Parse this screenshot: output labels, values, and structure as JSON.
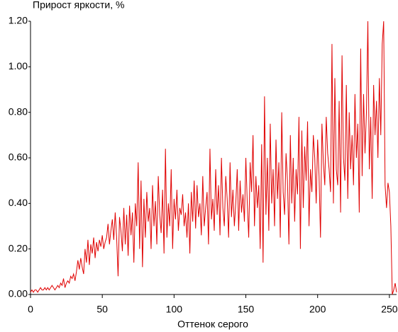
{
  "chart_data": {
    "type": "line",
    "title": "Прирост яркости, %",
    "x_label": "Оттенок серого",
    "color": "#e00000",
    "grid": false,
    "xlim": [
      0,
      255
    ],
    "xticks": [
      0,
      50,
      100,
      150,
      200,
      250
    ],
    "ylim": [
      0,
      1.2
    ],
    "yticks": [
      {
        "value": 0,
        "label": "0.00"
      },
      {
        "value": 0.2,
        "label": "0.20"
      },
      {
        "value": 0.4,
        "label": "0.40"
      },
      {
        "value": 0.6,
        "label": "0.60"
      },
      {
        "value": 0.8,
        "label": "0.80"
      },
      {
        "value": 1.0,
        "label": "1.00"
      },
      {
        "value": 1.2,
        "label": "1.20"
      }
    ],
    "x": [
      0,
      1,
      2,
      3,
      4,
      5,
      6,
      7,
      8,
      9,
      10,
      11,
      12,
      13,
      14,
      15,
      16,
      17,
      18,
      19,
      20,
      21,
      22,
      23,
      24,
      25,
      26,
      27,
      28,
      29,
      30,
      31,
      32,
      33,
      34,
      35,
      36,
      37,
      38,
      39,
      40,
      41,
      42,
      43,
      44,
      45,
      46,
      47,
      48,
      49,
      50,
      51,
      52,
      53,
      54,
      55,
      56,
      57,
      58,
      59,
      60,
      61,
      62,
      63,
      64,
      65,
      66,
      67,
      68,
      69,
      70,
      71,
      72,
      73,
      74,
      75,
      76,
      77,
      78,
      79,
      80,
      81,
      82,
      83,
      84,
      85,
      86,
      87,
      88,
      89,
      90,
      91,
      92,
      93,
      94,
      95,
      96,
      97,
      98,
      99,
      100,
      101,
      102,
      103,
      104,
      105,
      106,
      107,
      108,
      109,
      110,
      111,
      112,
      113,
      114,
      115,
      116,
      117,
      118,
      119,
      120,
      121,
      122,
      123,
      124,
      125,
      126,
      127,
      128,
      129,
      130,
      131,
      132,
      133,
      134,
      135,
      136,
      137,
      138,
      139,
      140,
      141,
      142,
      143,
      144,
      145,
      146,
      147,
      148,
      149,
      150,
      151,
      152,
      153,
      154,
      155,
      156,
      157,
      158,
      159,
      160,
      161,
      162,
      163,
      164,
      165,
      166,
      167,
      168,
      169,
      170,
      171,
      172,
      173,
      174,
      175,
      176,
      177,
      178,
      179,
      180,
      181,
      182,
      183,
      184,
      185,
      186,
      187,
      188,
      189,
      190,
      191,
      192,
      193,
      194,
      195,
      196,
      197,
      198,
      199,
      200,
      201,
      202,
      203,
      204,
      205,
      206,
      207,
      208,
      209,
      210,
      211,
      212,
      213,
      214,
      215,
      216,
      217,
      218,
      219,
      220,
      221,
      222,
      223,
      224,
      225,
      226,
      227,
      228,
      229,
      230,
      231,
      232,
      233,
      234,
      235,
      236,
      237,
      238,
      239,
      240,
      241,
      242,
      243,
      244,
      245,
      246,
      247,
      248,
      249,
      250,
      251,
      252,
      253,
      254,
      255
    ],
    "values": [
      0.01,
      0.02,
      0.01,
      0.02,
      0.02,
      0.01,
      0.02,
      0.03,
      0.02,
      0.02,
      0.03,
      0.02,
      0.03,
      0.02,
      0.03,
      0.04,
      0.03,
      0.02,
      0.03,
      0.04,
      0.03,
      0.05,
      0.04,
      0.07,
      0.03,
      0.05,
      0.06,
      0.05,
      0.08,
      0.07,
      0.09,
      0.06,
      0.1,
      0.15,
      0.11,
      0.16,
      0.12,
      0.09,
      0.2,
      0.14,
      0.24,
      0.13,
      0.22,
      0.18,
      0.25,
      0.16,
      0.23,
      0.19,
      0.24,
      0.21,
      0.26,
      0.2,
      0.23,
      0.25,
      0.31,
      0.22,
      0.28,
      0.33,
      0.24,
      0.36,
      0.25,
      0.08,
      0.34,
      0.28,
      0.19,
      0.38,
      0.22,
      0.35,
      0.17,
      0.39,
      0.26,
      0.36,
      0.14,
      0.4,
      0.3,
      0.58,
      0.2,
      0.5,
      0.12,
      0.42,
      0.25,
      0.45,
      0.32,
      0.38,
      0.2,
      0.48,
      0.3,
      0.41,
      0.22,
      0.52,
      0.35,
      0.27,
      0.46,
      0.18,
      0.64,
      0.25,
      0.4,
      0.3,
      0.55,
      0.2,
      0.42,
      0.33,
      0.46,
      0.28,
      0.38,
      0.35,
      0.44,
      0.3,
      0.36,
      0.25,
      0.4,
      0.18,
      0.45,
      0.32,
      0.5,
      0.29,
      0.48,
      0.34,
      0.4,
      0.26,
      0.52,
      0.3,
      0.38,
      0.45,
      0.22,
      0.64,
      0.33,
      0.42,
      0.28,
      0.55,
      0.35,
      0.48,
      0.26,
      0.6,
      0.38,
      0.3,
      0.52,
      0.42,
      0.25,
      0.58,
      0.34,
      0.46,
      0.3,
      0.4,
      0.55,
      0.28,
      0.5,
      0.36,
      0.44,
      0.32,
      0.6,
      0.4,
      0.25,
      0.58,
      0.45,
      0.7,
      0.3,
      0.52,
      0.38,
      0.48,
      0.2,
      0.66,
      0.14,
      0.87,
      0.35,
      0.6,
      0.28,
      0.75,
      0.4,
      0.55,
      0.3,
      0.68,
      0.42,
      0.58,
      0.25,
      0.8,
      0.45,
      0.35,
      0.62,
      0.5,
      0.22,
      0.7,
      0.4,
      0.6,
      0.32,
      0.55,
      0.44,
      0.78,
      0.2,
      0.72,
      0.38,
      0.65,
      0.5,
      0.76,
      0.3,
      0.55,
      0.45,
      0.7,
      0.6,
      0.4,
      0.68,
      0.52,
      0.25,
      0.75,
      0.58,
      0.48,
      0.78,
      0.62,
      0.55,
      0.45,
      1.1,
      0.4,
      0.95,
      0.55,
      0.48,
      0.85,
      0.36,
      1.05,
      0.6,
      0.5,
      0.92,
      0.42,
      0.8,
      0.55,
      0.7,
      0.48,
      0.88,
      0.6,
      0.75,
      0.36,
      1.08,
      0.52,
      0.88,
      0.62,
      0.8,
      1.2,
      0.55,
      0.78,
      0.42,
      0.92,
      0.7,
      0.85,
      0.6,
      0.95,
      0.7,
      1.1,
      1.2,
      0.48,
      0.38,
      0.49,
      0.45,
      0.3,
      0.0,
      0.02,
      0.05,
      0.01
    ]
  }
}
